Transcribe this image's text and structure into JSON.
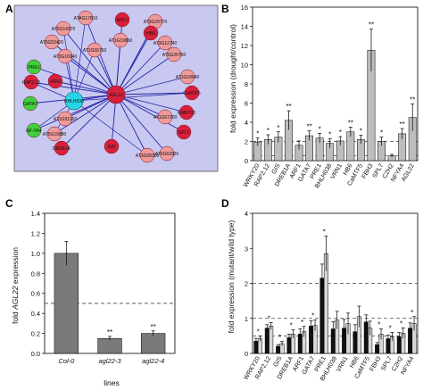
{
  "panels": {
    "a": {
      "letter": "A",
      "hub_label": "AGL22",
      "center_label": "BHLH038",
      "colors": {
        "background": "#c9c8f1",
        "edge": "#2326a6",
        "red": "#d8203a",
        "pink": "#ef9a9a",
        "green": "#3fd03f",
        "cyan": "#27d6e6"
      },
      "nodes": [
        {
          "label": "ATAG17810",
          "color": "pink"
        },
        {
          "label": "ARF1",
          "color": "red"
        },
        {
          "label": "AT3G29770",
          "color": "pink"
        },
        {
          "label": "AT5G14370",
          "color": "pink"
        },
        {
          "label": "HB6",
          "color": "red"
        },
        {
          "label": "AT5G53420",
          "color": "pink"
        },
        {
          "label": "AT1G55760",
          "color": "pink"
        },
        {
          "label": "AT1G19860",
          "color": "pink"
        },
        {
          "label": "AT3G12740",
          "color": "pink"
        },
        {
          "label": "AT3G16940",
          "color": "pink"
        },
        {
          "label": "AT3G26760",
          "color": "pink"
        },
        {
          "label": "PRE1",
          "color": "green"
        },
        {
          "label": "RAP2.12",
          "color": "red"
        },
        {
          "label": "VRN1",
          "color": "red"
        },
        {
          "label": "AT1G18640",
          "color": "pink"
        },
        {
          "label": "CaMTF5",
          "color": "red"
        },
        {
          "label": "GATA7",
          "color": "green"
        },
        {
          "label": "AT1G51160",
          "color": "pink"
        },
        {
          "label": "NF-YA4",
          "color": "green"
        },
        {
          "label": "AT1G67200",
          "color": "pink"
        },
        {
          "label": "WRKY20",
          "color": "red"
        },
        {
          "label": "AT5G19880",
          "color": "pink"
        },
        {
          "label": "DREB1A",
          "color": "red"
        },
        {
          "label": "GIS",
          "color": "red"
        },
        {
          "label": "AT3G05000",
          "color": "pink"
        },
        {
          "label": "AT5G62920",
          "color": "pink"
        },
        {
          "label": "SPL7",
          "color": "red"
        }
      ]
    },
    "b": {
      "letter": "B",
      "ylabel": "fold expression (drought/control)"
    },
    "c": {
      "letter": "C",
      "ylabel_parts": [
        "fold ",
        "AGL22",
        " expression"
      ],
      "xlabel": "lines"
    },
    "d": {
      "letter": "D",
      "ylabel": "fold expression (mutant/wild type)"
    }
  },
  "chart_data": [
    {
      "type": "bar",
      "panel": "B",
      "categories": [
        "WRKY20",
        "RAP2.12",
        "GIS",
        "DREB1A",
        "ARF1",
        "GATA7",
        "PRE1",
        "BHLH038",
        "VRN1",
        "HB6",
        "CaMTF5",
        "FBH3",
        "SPL7",
        "C2H2",
        "NFYA4",
        "AGL22"
      ],
      "values": [
        1.95,
        2.2,
        2.45,
        4.2,
        1.6,
        2.6,
        2.35,
        1.8,
        2.05,
        3.0,
        2.2,
        11.5,
        2.0,
        0.5,
        2.8,
        4.5
      ],
      "errors": [
        0.4,
        0.5,
        0.55,
        1.0,
        0.45,
        0.5,
        0.5,
        0.5,
        0.45,
        0.5,
        0.45,
        2.2,
        0.45,
        0.15,
        0.55,
        1.4
      ],
      "significance": [
        "*",
        "*",
        "*",
        "**",
        "",
        "**",
        "*",
        "*",
        "*",
        "**",
        "*",
        "**",
        "*",
        "",
        "**",
        "**"
      ],
      "reference_lines": [
        2,
        0.5
      ],
      "ylim": [
        0,
        16
      ],
      "yticks": [
        "0",
        "2",
        "4",
        "6",
        "8",
        "10",
        "12",
        "14",
        "16"
      ],
      "xlabel": "",
      "ylabel": "fold expression (drought/control)",
      "colors": {
        "bar": "#bdbdbd"
      }
    },
    {
      "type": "bar",
      "panel": "C",
      "categories": [
        "Col-0",
        "agl22-3",
        "agl22-4"
      ],
      "values": [
        1.0,
        0.15,
        0.2
      ],
      "errors": [
        0.12,
        0.02,
        0.025
      ],
      "significance": [
        "",
        "**",
        "**"
      ],
      "reference_lines": [
        0.5
      ],
      "ylim": [
        0,
        1.4
      ],
      "yticks": [
        "0.0",
        "0.2",
        "0.4",
        "0.6",
        "0.8",
        "1.0",
        "1.2",
        "1.4"
      ],
      "xlabel": "lines",
      "ylabel": "fold AGL22 expression",
      "colors": {
        "bar": "#7a7a7a"
      }
    },
    {
      "type": "bar",
      "panel": "D",
      "categories": [
        "WRKY20",
        "RAP2.12",
        "GIS",
        "DREB1A",
        "ARF1",
        "GATA7",
        "PRE1",
        "BHLH038",
        "VRN1",
        "HB6",
        "CaMTF5",
        "FBH3",
        "SPL7",
        "C2H2",
        "NFYA4"
      ],
      "series": [
        {
          "values": [
            0.35,
            0.72,
            0.2,
            0.45,
            0.55,
            0.78,
            2.15,
            0.7,
            0.72,
            0.62,
            0.9,
            0.25,
            0.42,
            0.48,
            0.72
          ],
          "errors": [
            0.08,
            0.1,
            0.05,
            0.1,
            0.15,
            0.15,
            0.4,
            0.2,
            0.25,
            0.2,
            0.2,
            0.06,
            0.1,
            0.12,
            0.15
          ]
        },
        {
          "values": [
            0.42,
            0.78,
            0.28,
            0.55,
            0.62,
            0.8,
            2.85,
            0.95,
            0.85,
            1.05,
            0.72,
            0.55,
            0.48,
            0.58,
            0.85
          ],
          "errors": [
            0.08,
            0.1,
            0.06,
            0.12,
            0.15,
            0.15,
            0.5,
            0.25,
            0.3,
            0.3,
            0.2,
            0.15,
            0.12,
            0.15,
            0.2
          ]
        }
      ],
      "significance": [
        "*",
        "*",
        "*",
        "*",
        "*",
        "*",
        "*",
        "",
        "",
        "",
        "",
        "*",
        "*",
        "*",
        "*"
      ],
      "reference_lines": [
        2,
        1,
        0.5
      ],
      "ylim": [
        0,
        4
      ],
      "yticks": [
        "0",
        "1",
        "2",
        "3",
        "4"
      ],
      "xlabel": "",
      "ylabel": "fold expression (mutant/wild type)",
      "colors": {
        "series1": "#111111",
        "series2": "#d8d8d8"
      }
    }
  ]
}
